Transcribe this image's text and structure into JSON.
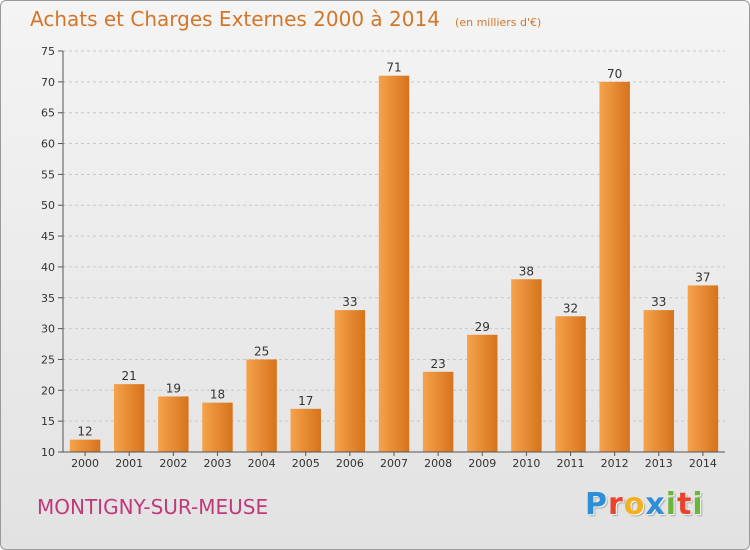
{
  "header": {
    "title": "Achats et Charges Externes 2000 à 2014",
    "subtitle": "(en milliers d'€)"
  },
  "footer": {
    "commune": "MONTIGNY-SUR-MEUSE",
    "brand": "Proxiti",
    "brand_letters": [
      {
        "char": "P",
        "color": "#2e8fd8"
      },
      {
        "char": "r",
        "color": "#e8442c"
      },
      {
        "char": "o",
        "color": "#f2b01e"
      },
      {
        "char": "x",
        "color": "#2e8fd8"
      },
      {
        "char": "i",
        "color": "#6bb53a"
      },
      {
        "char": "t",
        "color": "#e8442c"
      },
      {
        "char": "i",
        "color": "#6bb53a"
      }
    ]
  },
  "colors": {
    "title": "#d2762a",
    "commune": "#c0397a",
    "bar_light": "#f6a24c",
    "bar_dark": "#d6731c",
    "grid": "#c8c8c8"
  },
  "chart_data": {
    "type": "bar",
    "categories": [
      "2000",
      "2001",
      "2002",
      "2003",
      "2004",
      "2005",
      "2006",
      "2007",
      "2008",
      "2009",
      "2010",
      "2011",
      "2012",
      "2013",
      "2014"
    ],
    "values": [
      12,
      21,
      19,
      18,
      25,
      17,
      33,
      71,
      23,
      29,
      38,
      32,
      70,
      33,
      37
    ],
    "ylim": [
      10,
      75
    ],
    "yticks": [
      10,
      15,
      20,
      25,
      30,
      35,
      40,
      45,
      50,
      55,
      60,
      65,
      70,
      75
    ],
    "grid": true,
    "data_labels": true
  }
}
